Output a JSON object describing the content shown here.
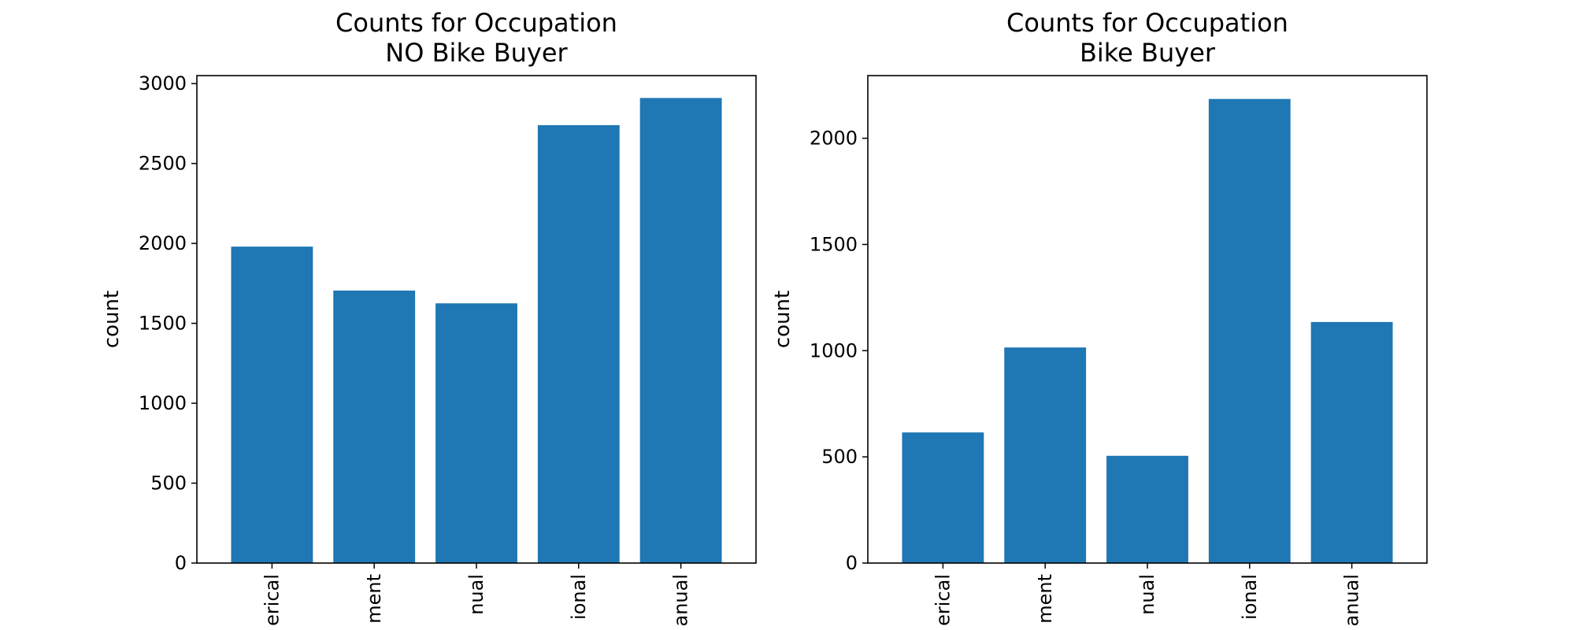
{
  "chart_data": [
    {
      "type": "bar",
      "title": "Counts for Occupation\nNO Bike Buyer",
      "title_lines": [
        "Counts for Occupation",
        "NO Bike Buyer"
      ],
      "xlabel": "",
      "ylabel": "count",
      "categories": [
        "Clerical",
        "Management",
        "Manual",
        "Professional",
        "Skilled Manual"
      ],
      "tick_labels_visible": [
        "erical",
        "ment",
        "nual",
        "ional",
        "anual"
      ],
      "values": [
        1980,
        1705,
        1625,
        2740,
        2910
      ],
      "yticks": [
        0,
        500,
        1000,
        1500,
        2000,
        2500,
        3000
      ],
      "ylim": [
        0,
        3050
      ],
      "grid": false,
      "color": "#1f77b4"
    },
    {
      "type": "bar",
      "title": "Counts for Occupation\nBike Buyer",
      "title_lines": [
        "Counts for Occupation",
        "Bike Buyer"
      ],
      "xlabel": "",
      "ylabel": "count",
      "categories": [
        "Clerical",
        "Management",
        "Manual",
        "Professional",
        "Skilled Manual"
      ],
      "tick_labels_visible": [
        "erical",
        "ment",
        "nual",
        "ional",
        "anual"
      ],
      "values": [
        615,
        1015,
        505,
        2185,
        1135
      ],
      "yticks": [
        0,
        500,
        1000,
        1500,
        2000
      ],
      "ylim": [
        0,
        2295
      ],
      "grid": false,
      "color": "#1f77b4"
    }
  ]
}
